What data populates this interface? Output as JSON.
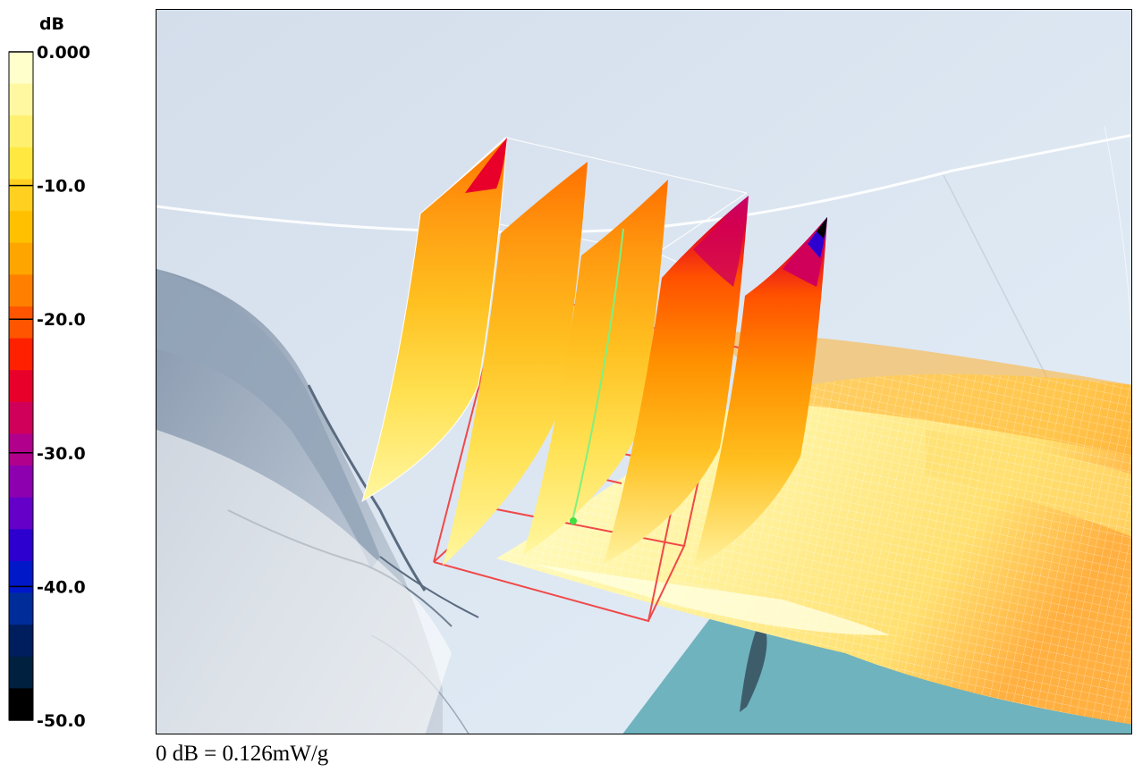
{
  "colorbar": {
    "unit": "dB",
    "ticks": [
      "0.000",
      "-10.0",
      "-20.0",
      "-30.0",
      "-40.0",
      "-50.0"
    ],
    "bands": [
      "#FFFFCC",
      "#FFF8A0",
      "#FFF070",
      "#FFE840",
      "#FFD020",
      "#FFC000",
      "#FFA500",
      "#FF8000",
      "#FF5500",
      "#FF2000",
      "#E8002A",
      "#D0005A",
      "#B0008C",
      "#8C00B0",
      "#6400C8",
      "#2E00D0",
      "#0018C8",
      "#002C9A",
      "#001E5E",
      "#002040",
      "#000000"
    ]
  },
  "caption": "0 dB = 0.126mW/g",
  "scene": {
    "colors": {
      "background": "#D9E4F0",
      "phantom_dark": "#8A9BB0",
      "teal_plane": "#6FB3BE",
      "grid_box": "#F04040",
      "probe_line": "#80F080"
    }
  }
}
